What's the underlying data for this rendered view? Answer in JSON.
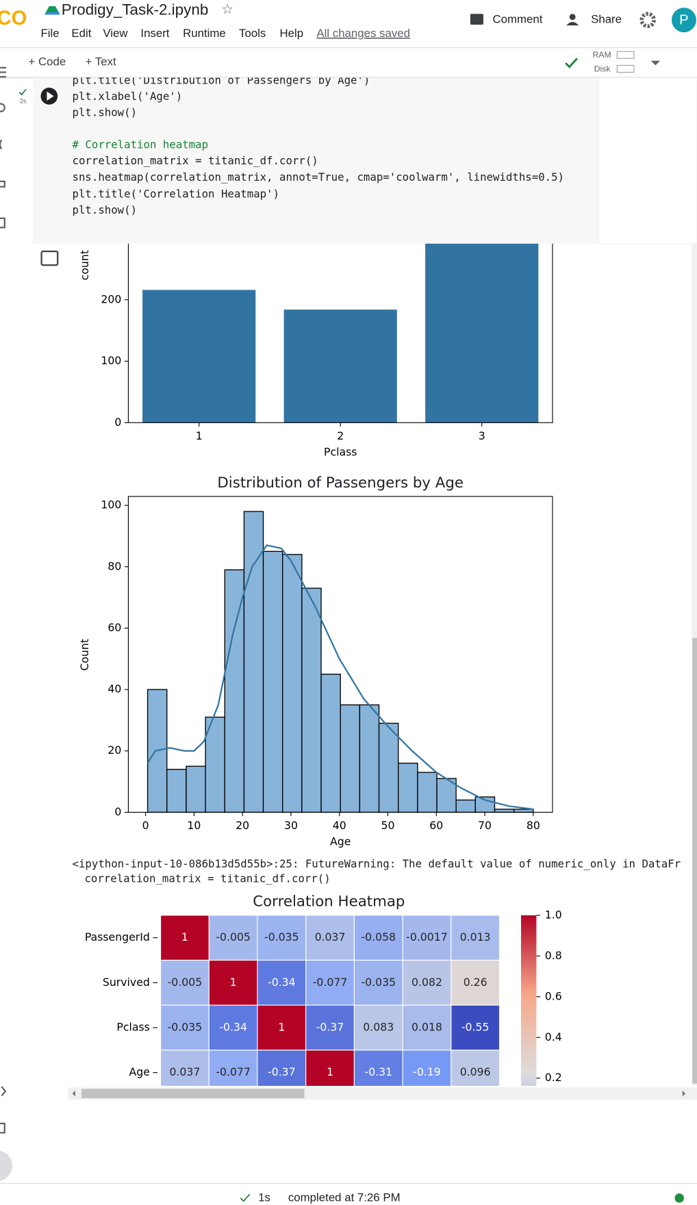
{
  "header": {
    "logo": "CO",
    "title": "Prodigy_Task-2.ipynb",
    "menu": [
      "File",
      "Edit",
      "View",
      "Insert",
      "Runtime",
      "Tools",
      "Help"
    ],
    "saved": "All changes saved",
    "comment": "Comment",
    "share": "Share",
    "avatar": "P"
  },
  "toolbar": {
    "code": "+ Code",
    "text": "+ Text",
    "ram": "RAM",
    "disk": "Disk"
  },
  "cell": {
    "time": "2s",
    "lines": [
      {
        "text": "plt.title('Distribution of Passengers by Age')",
        "color": "#202124"
      },
      {
        "text": "plt.xlabel('Age')",
        "color": "#202124"
      },
      {
        "text": "plt.show()",
        "color": "#202124"
      },
      {
        "text": "# Correlation heatmap",
        "color": "#188038"
      },
      {
        "text": "correlation_matrix = titanic_df.corr()",
        "color": "#202124"
      },
      {
        "text": "sns.heatmap(correlation_matrix, annot=True, cmap='coolwarm', linewidths=0.5)",
        "color": "#202124"
      },
      {
        "text": "plt.title('Correlation Heatmap')",
        "color": "#202124"
      },
      {
        "text": "plt.show()",
        "color": "#202124"
      }
    ]
  },
  "chart_data": [
    {
      "type": "bar",
      "xlabel": "Pclass",
      "ylabel": "count",
      "categories": [
        "1",
        "2",
        "3"
      ],
      "values": [
        216,
        184,
        491
      ],
      "color": "#3274a1",
      "ylim": [
        0,
        515.55
      ],
      "yticks": [
        0,
        100,
        200
      ]
    },
    {
      "type": "histogram",
      "title": "Distribution of Passengers by Age",
      "xlabel": "Age",
      "ylabel": "Count",
      "bins": [
        0.42,
        4.4,
        8.38,
        12.36,
        16.34,
        20.32,
        24.29,
        28.27,
        32.25,
        36.23,
        40.21,
        44.19,
        48.17,
        52.15,
        56.13,
        60.11,
        64.08,
        68.06,
        72.04,
        76.02,
        80
      ],
      "values": [
        40,
        14,
        15,
        31,
        79,
        98,
        85,
        84,
        73,
        45,
        35,
        35,
        29,
        16,
        13,
        11,
        4,
        5,
        1,
        1
      ],
      "color": "#89b4d9",
      "kde": {
        "x": [
          0.42,
          2,
          5,
          8,
          10,
          12,
          15,
          18,
          20,
          22,
          25,
          28,
          30,
          35,
          40,
          45,
          50,
          55,
          60,
          65,
          70,
          75,
          80
        ],
        "values": [
          16,
          20,
          21,
          20,
          20,
          23,
          35,
          58,
          70,
          80,
          87,
          86,
          82,
          67,
          50,
          37,
          28,
          20,
          13,
          8,
          4,
          2,
          1
        ],
        "color": "#3274a1"
      },
      "xlim": [
        -3.56,
        83.98
      ],
      "ylim": [
        0,
        102.9
      ],
      "xticks": [
        0,
        10,
        20,
        30,
        40,
        50,
        60,
        70,
        80
      ],
      "yticks": [
        0,
        20,
        40,
        60,
        80,
        100
      ]
    },
    {
      "type": "heatmap",
      "title": "Correlation Heatmap",
      "cmap": "coolwarm",
      "rows": [
        "PassengerId",
        "Survived",
        "Pclass",
        "Age"
      ],
      "values": [
        [
          1,
          -0.005,
          -0.035,
          0.037,
          -0.058,
          -0.0017,
          0.013
        ],
        [
          -0.005,
          1,
          -0.34,
          -0.077,
          -0.035,
          0.082,
          0.26
        ],
        [
          -0.035,
          -0.34,
          1,
          -0.37,
          0.083,
          0.018,
          -0.55
        ],
        [
          0.037,
          -0.077,
          -0.37,
          1,
          -0.31,
          -0.19,
          0.096
        ]
      ],
      "clim": [
        -0.55,
        1
      ],
      "cticks": [
        {
          "value": 1,
          "label": "1.0"
        },
        0.8,
        0.6,
        0.4,
        0.2
      ]
    }
  ],
  "warning": [
    "<ipython-input-10-086b13d5d55b>:25: FutureWarning: The default value of numeric_only in DataFr",
    "correlation_matrix = titanic_df.corr()"
  ],
  "status": {
    "time": "1s",
    "text": "completed at 7:26 PM"
  }
}
